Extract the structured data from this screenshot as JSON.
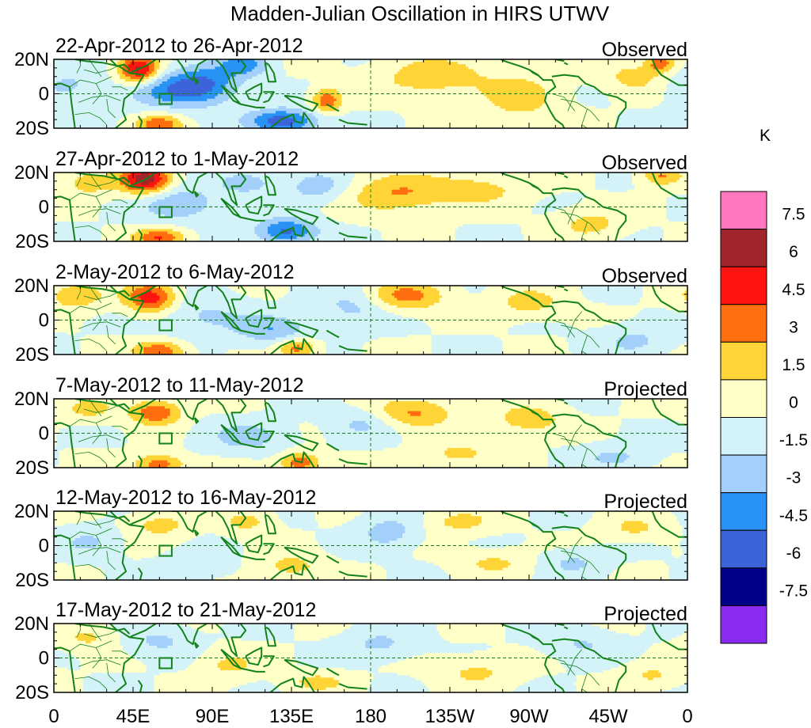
{
  "chart_data": {
    "type": "heatmap",
    "title": "Madden-Julian Oscillation in HIRS UTWV",
    "x_tick_labels": [
      "0",
      "45E",
      "90E",
      "135E",
      "180",
      "135W",
      "90W",
      "45W",
      "0"
    ],
    "x_ticks_deg": [
      0,
      45,
      90,
      135,
      180,
      225,
      270,
      315,
      360
    ],
    "y_tick_labels": [
      "20N",
      "0",
      "20S"
    ],
    "y_ticks_deg": [
      20,
      0,
      -20
    ],
    "xlim": [
      0,
      360
    ],
    "ylim": [
      -20,
      20
    ],
    "panels": [
      {
        "label": "22-Apr-2012 to 26-Apr-2012",
        "type": "Observed"
      },
      {
        "label": "27-Apr-2012 to 1-May-2012",
        "type": "Observed"
      },
      {
        "label": "2-May-2012 to 6-May-2012",
        "type": "Observed"
      },
      {
        "label": "7-May-2012 to 11-May-2012",
        "type": "Projected"
      },
      {
        "label": "12-May-2012 to 16-May-2012",
        "type": "Projected"
      },
      {
        "label": "17-May-2012 to 21-May-2012",
        "type": "Projected"
      }
    ],
    "colorbar": {
      "unit": "K",
      "labels": [
        "7.5",
        "6",
        "4.5",
        "3",
        "1.5",
        "0",
        "-1.5",
        "-3",
        "-4.5",
        "-6",
        "-7.5"
      ],
      "levels": [
        7.5,
        6,
        4.5,
        3,
        1.5,
        0,
        -1.5,
        -3,
        -4.5,
        -6,
        -7.5
      ],
      "colors": [
        "#ff77bf",
        "#a0262b",
        "#ff1410",
        "#ff6e0f",
        "#ffd436",
        "#ffffc8",
        "#d3f3f8",
        "#a2d0fa",
        "#2892f5",
        "#3c64d8",
        "#000089",
        "#8c2bf0"
      ]
    },
    "fields": [
      [
        {
          "lon": 48,
          "lat": 14,
          "amp": 6.5,
          "sx": 8,
          "sy": 6
        },
        {
          "lon": 85,
          "lat": 5,
          "amp": -4.5,
          "sx": 14,
          "sy": 8
        },
        {
          "lon": 62,
          "lat": 2,
          "amp": -3.0,
          "sx": 16,
          "sy": 7
        },
        {
          "lon": 130,
          "lat": -16,
          "amp": -5.5,
          "sx": 14,
          "sy": 5
        },
        {
          "lon": 155,
          "lat": -4,
          "amp": 4.2,
          "sx": 6,
          "sy": 5
        },
        {
          "lon": 60,
          "lat": -18,
          "amp": 4.2,
          "sx": 9,
          "sy": 4
        },
        {
          "lon": 215,
          "lat": 10,
          "amp": 2.5,
          "sx": 22,
          "sy": 8
        },
        {
          "lon": 265,
          "lat": -2,
          "amp": 2.2,
          "sx": 16,
          "sy": 10
        },
        {
          "lon": 330,
          "lat": 10,
          "amp": 2.2,
          "sx": 12,
          "sy": 6
        },
        {
          "lon": 345,
          "lat": 18,
          "amp": 4.0,
          "sx": 6,
          "sy": 4
        },
        {
          "lon": 108,
          "lat": 17,
          "amp": -3.5,
          "sx": 10,
          "sy": 5
        },
        {
          "lon": 8,
          "lat": 4,
          "amp": -1.8,
          "sx": 14,
          "sy": 8
        }
      ],
      [
        {
          "lon": 52,
          "lat": 16,
          "amp": 6.8,
          "sx": 10,
          "sy": 6
        },
        {
          "lon": 72,
          "lat": 2,
          "amp": -2.8,
          "sx": 16,
          "sy": 7
        },
        {
          "lon": 110,
          "lat": 14,
          "amp": -2.2,
          "sx": 12,
          "sy": 5
        },
        {
          "lon": 132,
          "lat": -14,
          "amp": -5.0,
          "sx": 12,
          "sy": 5
        },
        {
          "lon": 60,
          "lat": -18,
          "amp": 4.5,
          "sx": 10,
          "sy": 4
        },
        {
          "lon": 195,
          "lat": 8,
          "amp": 3.0,
          "sx": 20,
          "sy": 8
        },
        {
          "lon": 240,
          "lat": 10,
          "amp": 2.2,
          "sx": 18,
          "sy": 6
        },
        {
          "lon": 150,
          "lat": 12,
          "amp": -2.5,
          "sx": 12,
          "sy": 6
        },
        {
          "lon": 345,
          "lat": 18,
          "amp": 3.2,
          "sx": 8,
          "sy": 4
        },
        {
          "lon": 20,
          "lat": 14,
          "amp": 2.5,
          "sx": 10,
          "sy": 5
        },
        {
          "lon": 305,
          "lat": -10,
          "amp": 2.0,
          "sx": 14,
          "sy": 6
        }
      ],
      [
        {
          "lon": 55,
          "lat": 13,
          "amp": 5.5,
          "sx": 10,
          "sy": 6
        },
        {
          "lon": 12,
          "lat": 14,
          "amp": 2.5,
          "sx": 12,
          "sy": 6
        },
        {
          "lon": 60,
          "lat": -18,
          "amp": 4.5,
          "sx": 10,
          "sy": 4
        },
        {
          "lon": 138,
          "lat": -16,
          "amp": 3.8,
          "sx": 8,
          "sy": 4
        },
        {
          "lon": 125,
          "lat": -6,
          "amp": -2.8,
          "sx": 14,
          "sy": 6
        },
        {
          "lon": 200,
          "lat": 14,
          "amp": 3.5,
          "sx": 16,
          "sy": 6
        },
        {
          "lon": 170,
          "lat": 8,
          "amp": -2.0,
          "sx": 14,
          "sy": 8
        },
        {
          "lon": 270,
          "lat": 10,
          "amp": 2.2,
          "sx": 14,
          "sy": 6
        },
        {
          "lon": 85,
          "lat": 2,
          "amp": -1.8,
          "sx": 18,
          "sy": 8
        },
        {
          "lon": 330,
          "lat": -12,
          "amp": -1.8,
          "sx": 14,
          "sy": 6
        }
      ],
      [
        {
          "lon": 58,
          "lat": 12,
          "amp": 4.5,
          "sx": 10,
          "sy": 5
        },
        {
          "lon": 60,
          "lat": -18,
          "amp": 4.0,
          "sx": 10,
          "sy": 4
        },
        {
          "lon": 140,
          "lat": -17,
          "amp": 4.2,
          "sx": 8,
          "sy": 4
        },
        {
          "lon": 205,
          "lat": 12,
          "amp": 3.2,
          "sx": 16,
          "sy": 6
        },
        {
          "lon": 270,
          "lat": 8,
          "amp": 2.5,
          "sx": 14,
          "sy": 6
        },
        {
          "lon": 110,
          "lat": -2,
          "amp": -2.2,
          "sx": 16,
          "sy": 6
        },
        {
          "lon": 175,
          "lat": 6,
          "amp": -1.8,
          "sx": 12,
          "sy": 6
        },
        {
          "lon": 20,
          "lat": 14,
          "amp": 1.8,
          "sx": 12,
          "sy": 5
        },
        {
          "lon": 320,
          "lat": -14,
          "amp": -1.8,
          "sx": 14,
          "sy": 5
        },
        {
          "lon": 230,
          "lat": -12,
          "amp": 2.0,
          "sx": 14,
          "sy": 5
        }
      ],
      [
        {
          "lon": 60,
          "lat": 12,
          "amp": 2.2,
          "sx": 12,
          "sy": 5
        },
        {
          "lon": 110,
          "lat": 14,
          "amp": 2.0,
          "sx": 10,
          "sy": 5
        },
        {
          "lon": 135,
          "lat": -12,
          "amp": 2.2,
          "sx": 12,
          "sy": 5
        },
        {
          "lon": 190,
          "lat": 8,
          "amp": -2.2,
          "sx": 12,
          "sy": 7
        },
        {
          "lon": 230,
          "lat": 14,
          "amp": 2.0,
          "sx": 14,
          "sy": 5
        },
        {
          "lon": 250,
          "lat": -10,
          "amp": 1.8,
          "sx": 14,
          "sy": 5
        },
        {
          "lon": 295,
          "lat": -10,
          "amp": -1.8,
          "sx": 12,
          "sy": 5
        },
        {
          "lon": 20,
          "lat": 2,
          "amp": -1.6,
          "sx": 12,
          "sy": 6
        },
        {
          "lon": 330,
          "lat": 10,
          "amp": 1.8,
          "sx": 12,
          "sy": 5
        },
        {
          "lon": 80,
          "lat": -12,
          "amp": -1.6,
          "sx": 12,
          "sy": 5
        }
      ],
      [
        {
          "lon": 60,
          "lat": 10,
          "amp": -1.8,
          "sx": 14,
          "sy": 6
        },
        {
          "lon": 100,
          "lat": -4,
          "amp": 1.8,
          "sx": 12,
          "sy": 6
        },
        {
          "lon": 150,
          "lat": -14,
          "amp": 2.0,
          "sx": 12,
          "sy": 4
        },
        {
          "lon": 185,
          "lat": 8,
          "amp": -1.8,
          "sx": 14,
          "sy": 6
        },
        {
          "lon": 240,
          "lat": -8,
          "amp": 1.8,
          "sx": 16,
          "sy": 6
        },
        {
          "lon": 300,
          "lat": 8,
          "amp": -1.6,
          "sx": 14,
          "sy": 6
        },
        {
          "lon": 20,
          "lat": 12,
          "amp": 1.8,
          "sx": 12,
          "sy": 5
        },
        {
          "lon": 340,
          "lat": -10,
          "amp": 1.7,
          "sx": 12,
          "sy": 5
        }
      ]
    ],
    "coastlines": [
      [
        [
          12,
          -20
        ],
        [
          10,
          -5
        ],
        [
          9,
          4
        ],
        [
          4,
          6
        ],
        [
          -5,
          5
        ]
      ],
      [
        [
          12,
          20
        ],
        [
          18,
          19
        ],
        [
          28,
          18
        ],
        [
          37,
          16
        ],
        [
          43,
          12
        ],
        [
          51,
          11
        ],
        [
          46,
          2
        ],
        [
          40,
          -3
        ],
        [
          39,
          -10
        ],
        [
          41,
          -15
        ],
        [
          35,
          -20
        ]
      ],
      [
        [
          32,
          20
        ],
        [
          36,
          16
        ],
        [
          40,
          17
        ],
        [
          43,
          14
        ]
      ],
      [
        [
          48,
          -13
        ],
        [
          50,
          -16
        ],
        [
          49,
          -20
        ]
      ],
      [
        [
          43,
          12
        ],
        [
          45,
          13
        ],
        [
          52,
          16
        ],
        [
          58,
          20
        ]
      ],
      [
        [
          67,
          20
        ],
        [
          70,
          20
        ],
        [
          73,
          16
        ],
        [
          76,
          10
        ],
        [
          79,
          8
        ],
        [
          80,
          12
        ],
        [
          82,
          17
        ],
        [
          87,
          20
        ]
      ],
      [
        [
          80,
          9
        ],
        [
          82,
          7
        ],
        [
          81,
          6
        ],
        [
          80,
          9
        ]
      ],
      [
        [
          92,
          20
        ],
        [
          96,
          16
        ],
        [
          99,
          10
        ],
        [
          101,
          4
        ],
        [
          104,
          1
        ],
        [
          103,
          5
        ],
        [
          101,
          12
        ],
        [
          106,
          12
        ],
        [
          109,
          16
        ],
        [
          106,
          20
        ]
      ],
      [
        [
          95,
          5
        ],
        [
          101,
          0
        ],
        [
          106,
          -6
        ],
        [
          102,
          -4
        ],
        [
          95,
          5
        ]
      ],
      [
        [
          106,
          -6
        ],
        [
          115,
          -8
        ],
        [
          120,
          -8
        ]
      ],
      [
        [
          109,
          1
        ],
        [
          114,
          4
        ],
        [
          118,
          6
        ],
        [
          118,
          1
        ],
        [
          116,
          -4
        ],
        [
          111,
          -3
        ],
        [
          109,
          1
        ]
      ],
      [
        [
          119,
          1
        ],
        [
          125,
          1
        ],
        [
          122,
          -4
        ],
        [
          119,
          -5
        ]
      ],
      [
        [
          120,
          18
        ],
        [
          122,
          17
        ],
        [
          125,
          12
        ],
        [
          126,
          7
        ],
        [
          122,
          7
        ],
        [
          121,
          12
        ],
        [
          120,
          18
        ]
      ],
      [
        [
          131,
          -1
        ],
        [
          138,
          -2
        ],
        [
          144,
          -4
        ],
        [
          150,
          -6
        ],
        [
          147,
          -10
        ],
        [
          142,
          -8
        ],
        [
          135,
          -4
        ],
        [
          131,
          -1
        ]
      ],
      [
        [
          123,
          -20
        ],
        [
          129,
          -15
        ],
        [
          136,
          -12
        ],
        [
          137,
          -16
        ],
        [
          141,
          -17
        ],
        [
          142,
          -11
        ],
        [
          145,
          -15
        ],
        [
          148,
          -20
        ]
      ],
      [
        [
          155,
          -6
        ],
        [
          160,
          -9
        ],
        [
          162,
          -10
        ]
      ],
      [
        [
          162,
          -15
        ],
        [
          167,
          -17
        ],
        [
          178,
          -18
        ]
      ],
      [
        [
          254,
          20
        ],
        [
          256,
          19
        ],
        [
          265,
          16
        ],
        [
          270,
          14
        ],
        [
          275,
          11
        ],
        [
          278,
          8
        ],
        [
          283,
          8
        ],
        [
          285,
          4
        ],
        [
          280,
          0
        ],
        [
          279,
          -4
        ],
        [
          282,
          -10
        ],
        [
          285,
          -15
        ],
        [
          289,
          -18
        ],
        [
          290,
          -20
        ]
      ],
      [
        [
          283,
          10
        ],
        [
          290,
          11
        ],
        [
          298,
          10
        ],
        [
          302,
          6
        ],
        [
          307,
          4
        ],
        [
          312,
          0
        ],
        [
          320,
          -2
        ],
        [
          325,
          -5
        ],
        [
          325,
          -8
        ],
        [
          321,
          -13
        ],
        [
          319,
          -20
        ]
      ],
      [
        [
          276,
          20
        ],
        [
          280,
          22
        ],
        [
          285,
          20
        ],
        [
          290,
          19
        ]
      ],
      [
        [
          290,
          18
        ],
        [
          292,
          17
        ]
      ],
      [
        [
          340,
          20
        ],
        [
          342,
          15
        ],
        [
          345,
          11
        ],
        [
          350,
          8
        ],
        [
          355,
          5
        ],
        [
          360,
          5
        ]
      ]
    ],
    "borders": [
      [
        [
          9,
          4
        ],
        [
          15,
          8
        ],
        [
          24,
          6
        ],
        [
          33,
          10
        ]
      ],
      [
        [
          14,
          -5
        ],
        [
          22,
          -2
        ],
        [
          30,
          -1
        ],
        [
          38,
          -4
        ]
      ],
      [
        [
          17,
          14
        ],
        [
          24,
          12
        ],
        [
          32,
          14
        ],
        [
          36,
          16
        ]
      ],
      [
        [
          20,
          20
        ],
        [
          24,
          14
        ],
        [
          27,
          10
        ]
      ],
      [
        [
          12,
          -12
        ],
        [
          20,
          -11
        ],
        [
          26,
          -14
        ],
        [
          30,
          -18
        ]
      ],
      [
        [
          30,
          -3
        ],
        [
          31,
          -10
        ],
        [
          35,
          -14
        ]
      ],
      [
        [
          33,
          4
        ],
        [
          38,
          4
        ],
        [
          42,
          2
        ]
      ],
      [
        [
          24,
          6
        ],
        [
          27,
          0
        ],
        [
          22,
          -6
        ]
      ],
      [
        [
          13,
          12
        ],
        [
          15,
          16
        ],
        [
          15,
          20
        ]
      ],
      [
        [
          288,
          -3
        ],
        [
          297,
          -5
        ],
        [
          305,
          -10
        ],
        [
          310,
          -16
        ]
      ],
      [
        [
          300,
          5
        ],
        [
          296,
          0
        ],
        [
          292,
          -10
        ]
      ],
      [
        [
          283,
          0
        ],
        [
          290,
          -2
        ],
        [
          296,
          -10
        ]
      ],
      [
        [
          303,
          -9
        ],
        [
          300,
          -18
        ],
        [
          303,
          -20
        ]
      ],
      [
        [
          270,
          14
        ],
        [
          272,
          12
        ],
        [
          276,
          10
        ]
      ]
    ],
    "region_box": {
      "lon": [
        60,
        67
      ],
      "lat": [
        -6,
        0
      ]
    }
  }
}
